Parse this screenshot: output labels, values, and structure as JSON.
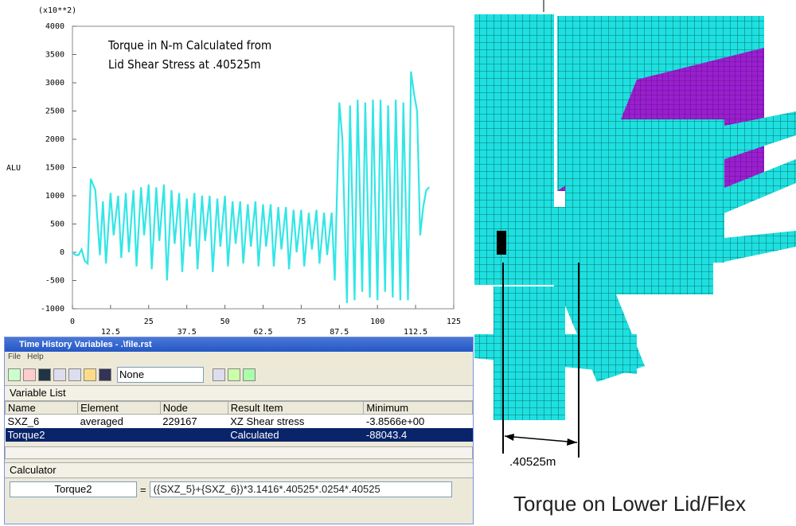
{
  "chart_data": {
    "type": "line",
    "title_lines": [
      "Torque in N-m Calculated from",
      "Lid Shear Stress at .40525m"
    ],
    "y_multiplier": "(x10**2)",
    "ylabel": "ALU",
    "x": [
      0,
      1,
      2,
      3,
      4,
      5,
      6,
      7.5,
      9,
      10,
      11,
      12.5,
      13.5,
      15,
      16,
      17.5,
      18.5,
      20,
      21,
      22.5,
      23.5,
      25,
      26,
      27.5,
      28.5,
      30,
      31,
      32.5,
      33.5,
      35,
      36,
      37.5,
      38.5,
      40,
      41,
      42.5,
      43.5,
      45,
      46,
      47.5,
      48.5,
      50,
      51,
      52.5,
      53.5,
      55,
      56,
      57.5,
      58.5,
      60,
      61,
      62.5,
      63.5,
      65,
      66,
      67.5,
      68.5,
      70,
      71,
      72.5,
      73.5,
      75,
      76,
      77.5,
      78.5,
      80,
      81,
      82.5,
      83.5,
      85,
      86,
      87.5,
      88.5,
      90,
      91,
      92.5,
      93.5,
      95,
      96,
      97.5,
      98.5,
      100,
      101,
      102.5,
      103.5,
      105,
      106,
      107.5,
      108.5,
      110,
      111,
      112,
      113,
      114,
      115,
      116,
      117
    ],
    "series": [
      {
        "color": "#33e6e6",
        "values": [
          0,
          -50,
          -50,
          50,
          -150,
          -200,
          1300,
          1100,
          -50,
          900,
          -200,
          1050,
          300,
          1000,
          -100,
          1050,
          0,
          1100,
          -250,
          1150,
          300,
          1200,
          -300,
          1150,
          200,
          1200,
          -500,
          1100,
          150,
          1050,
          -350,
          950,
          100,
          1050,
          -300,
          1000,
          200,
          1000,
          -350,
          950,
          100,
          1000,
          -250,
          900,
          150,
          900,
          -200,
          850,
          100,
          900,
          -250,
          850,
          100,
          850,
          -250,
          800,
          50,
          800,
          -300,
          750,
          0,
          750,
          -250,
          700,
          50,
          750,
          -200,
          700,
          -50,
          700,
          -500,
          2650,
          2000,
          -900,
          2600,
          -850,
          2700,
          -700,
          2650,
          -800,
          2700,
          -850,
          2700,
          -700,
          2600,
          -800,
          2700,
          -850,
          2650,
          -850,
          3200,
          2800,
          2500,
          300,
          800,
          1100,
          1150
        ]
      }
    ],
    "xlim": [
      0,
      125
    ],
    "xticks": [
      0,
      12.5,
      25,
      37.5,
      50,
      62.5,
      75,
      87.5,
      100,
      112.5,
      125
    ],
    "ylim": [
      -1000,
      4000
    ],
    "yticks": [
      -1000,
      -500,
      0,
      500,
      1000,
      1500,
      2000,
      2500,
      3000,
      3500,
      4000
    ]
  },
  "window": {
    "title": "Time History Variables - .\\file.rst",
    "menu": [
      "File",
      "Help"
    ],
    "dropdown": "None",
    "variable_list_label": "Variable List",
    "columns": [
      "Name",
      "Element",
      "Node",
      "Result Item",
      "Minimum"
    ],
    "rows": [
      [
        "SXZ_6",
        "averaged",
        "229167",
        "XZ Shear stress",
        "-3.8566e+00"
      ],
      [
        "Torque2",
        null,
        null,
        "Calculated",
        "-88043.4"
      ]
    ],
    "calculator_label": "Calculator",
    "calc_name": "Torque2",
    "equals": "=",
    "expression": "({SXZ_5}+{SXZ_6})*3.1416*.40525*.0254*.40525"
  },
  "figure": {
    "dimension": ".40525m",
    "caption": "Torque on Lower Lid/Flex"
  }
}
